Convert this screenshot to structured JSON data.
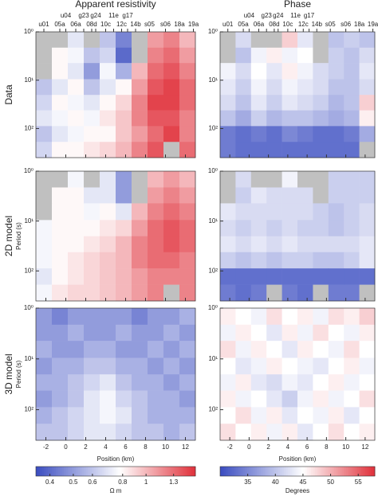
{
  "chart_data": {
    "type": "heatmap-grid",
    "stations_upper": {
      "names": [
        "u04",
        "g23",
        "g24",
        "11e",
        "g17"
      ],
      "x": [
        0,
        1.8,
        3,
        4.8,
        6.2
      ]
    },
    "stations_lower": {
      "names": [
        "u01",
        "05a",
        "06a",
        "08d",
        "10c",
        "12c",
        "14b",
        "s05",
        "s06",
        "18a",
        "19a"
      ],
      "x": [
        -2.2,
        -0.6,
        1,
        2.6,
        4,
        5.6,
        7,
        8.4,
        10,
        11.4,
        12.8
      ]
    },
    "x": [
      -2.2,
      -0.6,
      1,
      2.6,
      4.2,
      5.8,
      7.4,
      9,
      10.6,
      12.2
    ],
    "y": [
      1.5,
      3,
      6.5,
      14,
      29,
      61,
      130,
      275
    ],
    "xlim": [
      -3,
      13
    ],
    "ylim": [
      1,
      400
    ],
    "log_y": true,
    "xticks": [
      -2,
      0,
      2,
      4,
      6,
      8,
      10,
      12
    ],
    "yticks": [
      {
        "value": 1,
        "label": "10⁰"
      },
      {
        "value": 10,
        "label": "10¹"
      },
      {
        "value": 100,
        "label": "10²"
      }
    ],
    "xlabel": "Position (km)",
    "ylabel": "Period (s)",
    "no_data_color": "#c0c0c0",
    "colorbars": [
      {
        "label": "Ω m",
        "lim": [
          0.35,
          1.6
        ],
        "mid": 0.78,
        "log": true,
        "ticks": [
          0.4,
          0.5,
          0.6,
          0.8,
          1,
          1.3
        ],
        "colors": [
          "#3a4cc0",
          "#ffffff",
          "#e0303a"
        ]
      },
      {
        "label": "Degrees",
        "lim": [
          30,
          58
        ],
        "mid": 45,
        "log": false,
        "ticks": [
          35,
          40,
          45,
          50,
          55
        ],
        "colors": [
          "#3a4cc0",
          "#ffffff",
          "#e0303a"
        ]
      }
    ],
    "panels": [
      {
        "title": "Apparent resistivity",
        "row_label": "Data",
        "scale": 0,
        "values": [
          [
            null,
            null,
            0.7,
            null,
            0.6,
            0.45,
            null,
            1.1,
            1.2,
            1.0
          ],
          [
            null,
            0.8,
            0.75,
            0.6,
            0.65,
            0.4,
            null,
            1.2,
            1.3,
            1.1
          ],
          [
            null,
            0.8,
            0.7,
            0.5,
            0.75,
            0.55,
            1.0,
            1.3,
            1.4,
            1.2
          ],
          [
            0.6,
            0.7,
            0.8,
            0.6,
            0.7,
            0.8,
            1.1,
            1.4,
            1.5,
            1.3
          ],
          [
            0.65,
            0.8,
            0.75,
            0.7,
            0.8,
            0.9,
            1.2,
            1.5,
            1.5,
            1.3
          ],
          [
            0.7,
            0.75,
            0.8,
            0.75,
            0.85,
            0.95,
            1.2,
            1.4,
            1.4,
            1.2
          ],
          [
            0.6,
            0.7,
            0.75,
            0.8,
            0.8,
            0.95,
            1.1,
            1.3,
            1.5,
            1.2
          ],
          [
            0.65,
            0.8,
            0.8,
            0.85,
            0.9,
            1.0,
            1.2,
            1.4,
            null,
            1.3
          ]
        ]
      },
      {
        "title": "Phase",
        "scale": 1,
        "values": [
          [
            null,
            42,
            null,
            null,
            48,
            43,
            null,
            40,
            41,
            40
          ],
          [
            null,
            40,
            44,
            46,
            44,
            45,
            null,
            41,
            40,
            42
          ],
          [
            44,
            42,
            45,
            43,
            46,
            44,
            42,
            41,
            40,
            43
          ],
          [
            43,
            41,
            44,
            42,
            44,
            43,
            42,
            40,
            40,
            42
          ],
          [
            42,
            40,
            43,
            41,
            43,
            42,
            41,
            39,
            40,
            48
          ],
          [
            40,
            38,
            41,
            39,
            40,
            40,
            39,
            38,
            39,
            46
          ],
          [
            34,
            33,
            34,
            33,
            35,
            34,
            33,
            33,
            34,
            38
          ],
          [
            34,
            33,
            33,
            33,
            33,
            33,
            33,
            33,
            33,
            null
          ]
        ]
      },
      {
        "row_label": "2D model",
        "scale": 0,
        "values": [
          [
            null,
            null,
            0.75,
            null,
            0.7,
            0.5,
            null,
            1.0,
            1.1,
            1.0
          ],
          [
            null,
            0.8,
            0.8,
            0.7,
            0.7,
            0.5,
            null,
            1.1,
            1.2,
            1.1
          ],
          [
            null,
            0.8,
            0.8,
            0.75,
            0.8,
            0.7,
            1.0,
            1.2,
            1.3,
            1.2
          ],
          [
            0.75,
            0.8,
            0.8,
            0.8,
            0.85,
            0.9,
            1.1,
            1.3,
            1.4,
            1.3
          ],
          [
            0.75,
            0.8,
            0.8,
            0.85,
            0.9,
            1.0,
            1.2,
            1.3,
            1.4,
            1.3
          ],
          [
            0.75,
            0.8,
            0.85,
            0.9,
            0.95,
            1.0,
            1.2,
            1.3,
            1.3,
            1.2
          ],
          [
            0.7,
            0.8,
            0.85,
            0.9,
            0.95,
            1.0,
            1.1,
            1.2,
            1.2,
            1.2
          ],
          [
            0.75,
            0.85,
            0.9,
            0.9,
            0.95,
            1.0,
            1.1,
            1.2,
            null,
            1.2
          ]
        ]
      },
      {
        "scale": 1,
        "values": [
          [
            null,
            42,
            null,
            null,
            44,
            null,
            null,
            41,
            41,
            41
          ],
          [
            null,
            41,
            43,
            42,
            42,
            42,
            null,
            41,
            41,
            41
          ],
          [
            43,
            42,
            42,
            42,
            42,
            42,
            41,
            40,
            41,
            42
          ],
          [
            42,
            41,
            42,
            41,
            42,
            41,
            41,
            40,
            41,
            42
          ],
          [
            43,
            42,
            43,
            42,
            43,
            42,
            42,
            42,
            42,
            43
          ],
          [
            41,
            40,
            41,
            40,
            41,
            41,
            40,
            40,
            41,
            43
          ],
          [
            33,
            33,
            33,
            33,
            33,
            33,
            33,
            33,
            33,
            33
          ],
          [
            34,
            33,
            34,
            null,
            34,
            33,
            null,
            34,
            34,
            null
          ]
        ]
      },
      {
        "row_label": "3D model",
        "scale": 0,
        "values": [
          [
            0.5,
            0.45,
            0.5,
            0.5,
            0.5,
            0.5,
            0.45,
            0.5,
            0.5,
            0.55
          ],
          [
            0.5,
            0.5,
            0.55,
            0.5,
            0.5,
            0.55,
            0.5,
            0.5,
            0.55,
            0.5
          ],
          [
            0.55,
            0.5,
            0.5,
            0.55,
            0.55,
            0.5,
            0.5,
            0.55,
            0.5,
            0.55
          ],
          [
            0.5,
            0.55,
            0.55,
            0.6,
            0.6,
            0.55,
            0.55,
            0.5,
            0.55,
            0.5
          ],
          [
            0.55,
            0.55,
            0.6,
            0.65,
            0.7,
            0.6,
            0.55,
            0.55,
            0.5,
            0.55
          ],
          [
            0.5,
            0.55,
            0.6,
            0.7,
            0.75,
            0.65,
            0.6,
            0.55,
            0.55,
            0.5
          ],
          [
            0.55,
            0.6,
            0.65,
            0.7,
            0.75,
            0.7,
            0.6,
            0.55,
            0.55,
            0.55
          ],
          [
            0.6,
            0.6,
            0.65,
            0.7,
            0.7,
            0.65,
            0.6,
            0.6,
            0.55,
            0.6
          ]
        ]
      },
      {
        "scale": 1,
        "values": [
          [
            46,
            45,
            44,
            47,
            45,
            46,
            44,
            47,
            46,
            48
          ],
          [
            44,
            46,
            45,
            43,
            46,
            44,
            47,
            45,
            44,
            46
          ],
          [
            47,
            44,
            46,
            45,
            43,
            46,
            45,
            44,
            47,
            45
          ],
          [
            45,
            43,
            44,
            46,
            45,
            44,
            43,
            45,
            46,
            44
          ],
          [
            44,
            46,
            43,
            42,
            44,
            43,
            45,
            46,
            44,
            45
          ],
          [
            46,
            44,
            45,
            43,
            41,
            44,
            46,
            44,
            45,
            47
          ],
          [
            45,
            47,
            44,
            46,
            43,
            45,
            44,
            46,
            43,
            45
          ],
          [
            47,
            45,
            46,
            44,
            46,
            43,
            45,
            47,
            45,
            46
          ]
        ]
      }
    ]
  }
}
